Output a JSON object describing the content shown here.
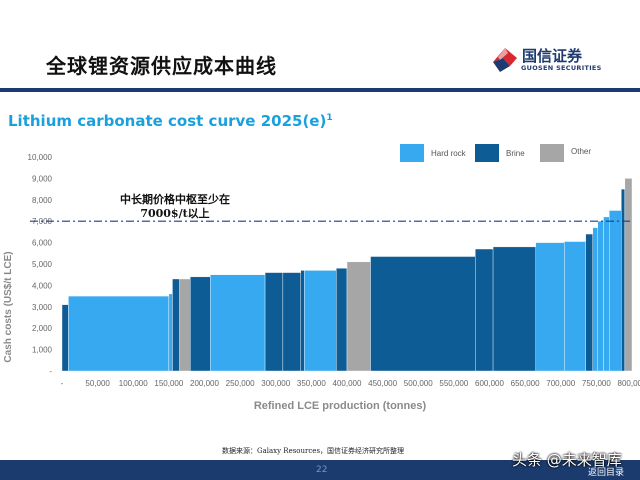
{
  "slide": {
    "title": "全球锂资源供应成本曲线",
    "source": "数据来源：Galaxy Resources，国信证券经济研究所整理",
    "page_number": "22",
    "back_link": "返回目录",
    "watermark": "头条 @未来智库"
  },
  "logo": {
    "name_cn": "国信证券",
    "name_en": "GUOSEN SECURITIES",
    "icon": "guosen-logo-icon",
    "colors": {
      "red": "#d7282f",
      "navy": "#1f3a70"
    }
  },
  "colors": {
    "hard_rock": "#37a9f0",
    "brine": "#0d5c96",
    "other": "#a6a6a6",
    "title_blue": "#1aa0dd",
    "reference_line": "#1b3b8f",
    "footer": "#1b3b6f"
  },
  "chart_data": {
    "type": "bar",
    "title": "Lithium carbonate cost curve 2025(e)",
    "title_superscript": "1",
    "xlabel": "Refined LCE production (tonnes)",
    "ylabel": "Cash costs (US$/t LCE)",
    "xlim": [
      0,
      800000
    ],
    "ylim": [
      0,
      10000
    ],
    "x_ticks": [
      0,
      50000,
      100000,
      150000,
      200000,
      250000,
      300000,
      350000,
      400000,
      450000,
      500000,
      550000,
      600000,
      650000,
      700000,
      750000,
      800000
    ],
    "x_tick_labels": [
      "-",
      "50,000",
      "100,000",
      "150,000",
      "200,000",
      "250,000",
      "300,000",
      "350,000",
      "400,000",
      "450,000",
      "500,000",
      "550,000",
      "600,000",
      "650,000",
      "700,000",
      "750,000",
      "800,000"
    ],
    "y_ticks": [
      0,
      1000,
      2000,
      3000,
      4000,
      5000,
      6000,
      7000,
      8000,
      9000,
      10000
    ],
    "y_tick_labels": [
      "-",
      "1,000",
      "2,000",
      "3,000",
      "4,000",
      "5,000",
      "6,000",
      "7,000",
      "8,000",
      "9,000",
      "10,000"
    ],
    "grid": false,
    "legend_position": "top-right",
    "series": [
      {
        "name": "Hard rock",
        "color": "#37a9f0"
      },
      {
        "name": "Brine",
        "color": "#0d5c96"
      },
      {
        "name": "Other",
        "color": "#a6a6a6"
      }
    ],
    "bars": [
      {
        "start": 0,
        "end": 9000,
        "cost": 3100,
        "type": "Brine"
      },
      {
        "start": 9000,
        "end": 150000,
        "cost": 3500,
        "type": "Hard rock"
      },
      {
        "start": 150000,
        "end": 155000,
        "cost": 3600,
        "type": "Hard rock"
      },
      {
        "start": 155000,
        "end": 165000,
        "cost": 4300,
        "type": "Brine"
      },
      {
        "start": 165000,
        "end": 180000,
        "cost": 4300,
        "type": "Other"
      },
      {
        "start": 180000,
        "end": 208000,
        "cost": 4400,
        "type": "Brine"
      },
      {
        "start": 208000,
        "end": 285000,
        "cost": 4500,
        "type": "Hard rock"
      },
      {
        "start": 285000,
        "end": 310000,
        "cost": 4600,
        "type": "Brine"
      },
      {
        "start": 310000,
        "end": 335000,
        "cost": 4600,
        "type": "Brine"
      },
      {
        "start": 335000,
        "end": 340000,
        "cost": 4700,
        "type": "Brine"
      },
      {
        "start": 340000,
        "end": 385000,
        "cost": 4700,
        "type": "Hard rock"
      },
      {
        "start": 385000,
        "end": 400000,
        "cost": 4800,
        "type": "Brine"
      },
      {
        "start": 400000,
        "end": 433000,
        "cost": 5100,
        "type": "Other"
      },
      {
        "start": 433000,
        "end": 580000,
        "cost": 5350,
        "type": "Brine"
      },
      {
        "start": 580000,
        "end": 605000,
        "cost": 5700,
        "type": "Brine"
      },
      {
        "start": 605000,
        "end": 665000,
        "cost": 5800,
        "type": "Brine"
      },
      {
        "start": 665000,
        "end": 705000,
        "cost": 6000,
        "type": "Hard rock"
      },
      {
        "start": 705000,
        "end": 735000,
        "cost": 6050,
        "type": "Hard rock"
      },
      {
        "start": 735000,
        "end": 745000,
        "cost": 6400,
        "type": "Brine"
      },
      {
        "start": 745000,
        "end": 752000,
        "cost": 6700,
        "type": "Hard rock"
      },
      {
        "start": 752000,
        "end": 760000,
        "cost": 7000,
        "type": "Hard rock"
      },
      {
        "start": 760000,
        "end": 768000,
        "cost": 7200,
        "type": "Hard rock"
      },
      {
        "start": 768000,
        "end": 785000,
        "cost": 7500,
        "type": "Hard rock"
      },
      {
        "start": 785000,
        "end": 790000,
        "cost": 8500,
        "type": "Brine"
      },
      {
        "start": 790000,
        "end": 800000,
        "cost": 9000,
        "type": "Other"
      }
    ],
    "reference_line": {
      "y": 7000,
      "label_line1": "中长期价格中枢至少在",
      "label_line2": "7000$/t以上"
    }
  }
}
